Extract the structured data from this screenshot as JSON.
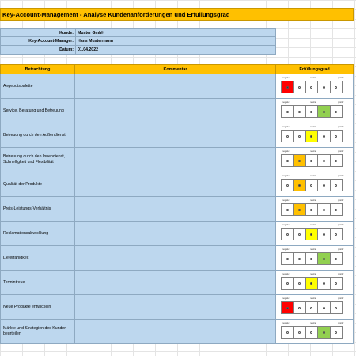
{
  "title": "Key-Account-Management - Analyse Kundenanforderungen und Erfüllungsgrad",
  "info": {
    "kunde_label": "Kunde:",
    "kunde_value": "Muster GmbH",
    "manager_label": "Key-Account-Manager:",
    "manager_value": "Hans Mustermann",
    "datum_label": "Datum:",
    "datum_value": "01.04.2022"
  },
  "header": {
    "betrachtung": "Betrachtung",
    "kommentar": "Kommentar",
    "erfuellungsgrad": "Erfüllungsgrad"
  },
  "scale_labels": {
    "negativ": "negativ",
    "neutral": "neutral",
    "positiv": "positiv"
  },
  "colors": {
    "1": "#ff0000",
    "2": "#ffc000",
    "3": "#ffff00",
    "4": "#92d050",
    "5": "#00b050"
  },
  "rows": [
    {
      "label": "Angebotspalette",
      "comment": "",
      "rating": 1
    },
    {
      "label": "Service, Beratung und Betreuung",
      "comment": "",
      "rating": 4
    },
    {
      "label": "Betreuung durch den Außendienst",
      "comment": "",
      "rating": 3
    },
    {
      "label": "Betreuung durch den Innendienst, Schnelligkeit und Flexibilität",
      "comment": "",
      "rating": 2
    },
    {
      "label": "Qualität der Produkte",
      "comment": "",
      "rating": 2
    },
    {
      "label": "Preis-Leistungs-Verhältnis",
      "comment": "",
      "rating": 2
    },
    {
      "label": "Reklamationsabwicklung",
      "comment": "",
      "rating": 3
    },
    {
      "label": "Lieferfähigkeit",
      "comment": "",
      "rating": 4
    },
    {
      "label": "Termintreue",
      "comment": "",
      "rating": 3
    },
    {
      "label": "Neue Produkte entwickeln",
      "comment": "",
      "rating": 1
    },
    {
      "label": "Märkte und Strategien des Kunden beurteilen",
      "comment": "",
      "rating": 4
    }
  ]
}
